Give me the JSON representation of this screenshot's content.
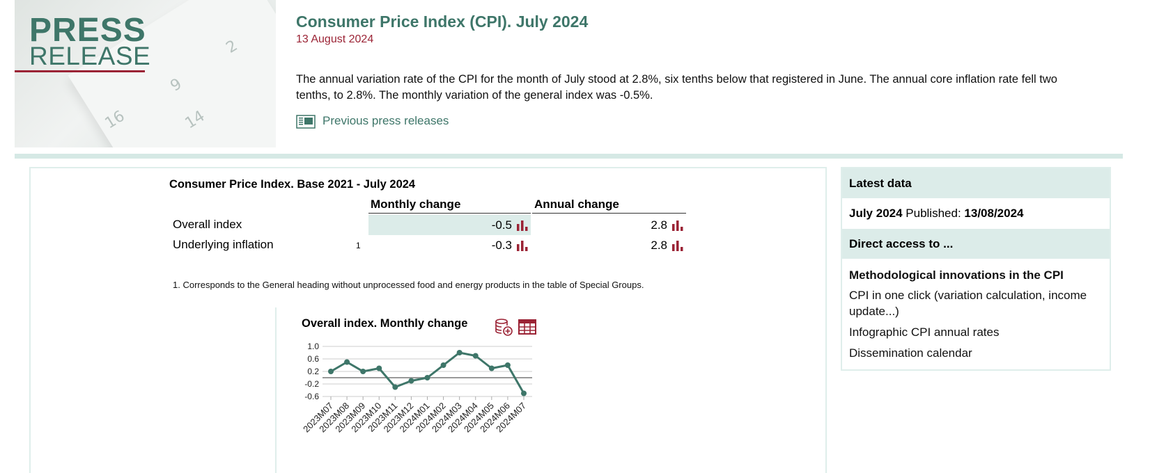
{
  "logo": {
    "line1": "PRESS",
    "line2": "RELEASE"
  },
  "header": {
    "title": "Consumer Price Index (CPI). July 2024",
    "date": "13 August 2024",
    "summary": "The annual variation rate of the CPI for the month of July stood at 2.8%, six tenths below that registered in June. The annual core inflation rate fell two tenths, to 2.8%. The monthly variation of the general index was -0.5%.",
    "previous_link": "Previous press releases"
  },
  "table": {
    "title": "Consumer Price Index. Base 2021 - July 2024",
    "col_monthly": "Monthly change",
    "col_annual": "Annual change",
    "rows": [
      {
        "label": "Overall index",
        "note": "",
        "monthly": "-0.5",
        "annual": "2.8"
      },
      {
        "label": "Underlying inflation",
        "note": "1",
        "monthly": "-0.3",
        "annual": "2.8"
      }
    ],
    "footnote": "1. Corresponds to the General heading without unprocessed food and energy products in the table of Special Groups."
  },
  "chart_data": {
    "type": "line",
    "title": "Overall index. Monthly change",
    "categories": [
      "2023M07",
      "2023M08",
      "2023M09",
      "2023M10",
      "2023M11",
      "2023M12",
      "2024M01",
      "2024M02",
      "2024M03",
      "2024M04",
      "2024M05",
      "2024M06",
      "2024M07"
    ],
    "values": [
      0.2,
      0.5,
      0.2,
      0.3,
      -0.3,
      -0.1,
      0.0,
      0.4,
      0.8,
      0.7,
      0.3,
      0.4,
      -0.5
    ],
    "yticks": [
      1.0,
      0.6,
      0.2,
      -0.2,
      -0.6
    ],
    "ytick_labels": [
      "1.0",
      "0.6",
      "0.2",
      "-0.2",
      "-0.6"
    ],
    "ylim": [
      -0.6,
      1.0
    ],
    "grid": true,
    "zero_line": true,
    "colors": {
      "line": "#3e7669",
      "grid": "#cccccc",
      "zero": "#999999"
    }
  },
  "sidebar": {
    "latest_heading": "Latest data",
    "latest_period": "July 2024",
    "published_label": " Published: ",
    "published_date": "13/08/2024",
    "direct_heading": "Direct access to ...",
    "links": [
      "Methodological innovations in the CPI",
      "CPI in one click (variation calculation, income update...)",
      "Infographic CPI annual rates",
      "Dissemination calendar"
    ]
  },
  "colors": {
    "accent": "#3e7669",
    "brand_red": "#9b2335",
    "panel": "#dcece9"
  },
  "icons": {
    "previous": "newspaper-icon",
    "bar": "bar-chart-icon",
    "db": "database-add-icon",
    "table": "table-icon"
  }
}
